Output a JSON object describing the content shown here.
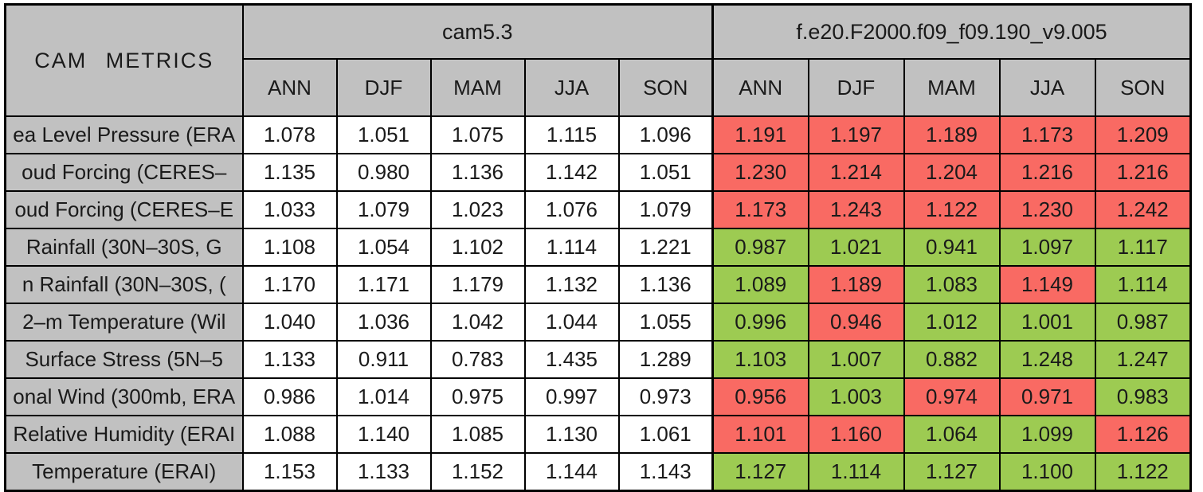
{
  "title": "CAM METRICS",
  "colors": {
    "title_bg": "#6495ed",
    "header_bg": "#c1c1c1",
    "baseline_bg": "#ffffff",
    "better": "#9dcb52",
    "worse": "#f96a63",
    "border": "#000000",
    "text": "#1a1a1a"
  },
  "chart_data": {
    "type": "table",
    "title": "CAM METRICS",
    "column_groups": [
      "cam5.3",
      "f.e20.F2000.f09_f09.190_v9.005"
    ],
    "seasons": [
      "ANN",
      "DJF",
      "MAM",
      "JJA",
      "SON"
    ],
    "legend": {
      "worse_color_meaning": "test case worse (red)",
      "better_color_meaning": "test case better (green)"
    },
    "rows": [
      {
        "label": "ea Level Pressure (ERA",
        "baseline": [
          "1.078",
          "1.051",
          "1.075",
          "1.115",
          "1.096"
        ],
        "test": [
          "1.191",
          "1.197",
          "1.189",
          "1.173",
          "1.209"
        ],
        "test_status": [
          "worse",
          "worse",
          "worse",
          "worse",
          "worse"
        ]
      },
      {
        "label": "oud Forcing (CERES–",
        "baseline": [
          "1.135",
          "0.980",
          "1.136",
          "1.142",
          "1.051"
        ],
        "test": [
          "1.230",
          "1.214",
          "1.204",
          "1.216",
          "1.216"
        ],
        "test_status": [
          "worse",
          "worse",
          "worse",
          "worse",
          "worse"
        ]
      },
      {
        "label": "oud Forcing (CERES–E",
        "baseline": [
          "1.033",
          "1.079",
          "1.023",
          "1.076",
          "1.079"
        ],
        "test": [
          "1.173",
          "1.243",
          "1.122",
          "1.230",
          "1.242"
        ],
        "test_status": [
          "worse",
          "worse",
          "worse",
          "worse",
          "worse"
        ]
      },
      {
        "label": "Rainfall (30N–30S, G",
        "baseline": [
          "1.108",
          "1.054",
          "1.102",
          "1.114",
          "1.221"
        ],
        "test": [
          "0.987",
          "1.021",
          "0.941",
          "1.097",
          "1.117"
        ],
        "test_status": [
          "better",
          "better",
          "better",
          "better",
          "better"
        ]
      },
      {
        "label": "n Rainfall (30N–30S, (",
        "baseline": [
          "1.170",
          "1.171",
          "1.179",
          "1.132",
          "1.136"
        ],
        "test": [
          "1.089",
          "1.189",
          "1.083",
          "1.149",
          "1.114"
        ],
        "test_status": [
          "better",
          "worse",
          "better",
          "worse",
          "better"
        ]
      },
      {
        "label": "2–m Temperature (Wil",
        "baseline": [
          "1.040",
          "1.036",
          "1.042",
          "1.044",
          "1.055"
        ],
        "test": [
          "0.996",
          "0.946",
          "1.012",
          "1.001",
          "0.987"
        ],
        "test_status": [
          "better",
          "worse",
          "better",
          "better",
          "better"
        ]
      },
      {
        "label": "Surface Stress (5N–5",
        "baseline": [
          "1.133",
          "0.911",
          "0.783",
          "1.435",
          "1.289"
        ],
        "test": [
          "1.103",
          "1.007",
          "0.882",
          "1.248",
          "1.247"
        ],
        "test_status": [
          "better",
          "better",
          "better",
          "better",
          "better"
        ]
      },
      {
        "label": "onal Wind (300mb, ERA",
        "baseline": [
          "0.986",
          "1.014",
          "0.975",
          "0.997",
          "0.973"
        ],
        "test": [
          "0.956",
          "1.003",
          "0.974",
          "0.971",
          "0.983"
        ],
        "test_status": [
          "worse",
          "better",
          "worse",
          "worse",
          "better"
        ]
      },
      {
        "label": "Relative Humidity (ERAI",
        "baseline": [
          "1.088",
          "1.140",
          "1.085",
          "1.130",
          "1.061"
        ],
        "test": [
          "1.101",
          "1.160",
          "1.064",
          "1.099",
          "1.126"
        ],
        "test_status": [
          "worse",
          "worse",
          "better",
          "better",
          "worse"
        ]
      },
      {
        "label": "Temperature (ERAI)",
        "baseline": [
          "1.153",
          "1.133",
          "1.152",
          "1.144",
          "1.143"
        ],
        "test": [
          "1.127",
          "1.114",
          "1.127",
          "1.100",
          "1.122"
        ],
        "test_status": [
          "better",
          "better",
          "better",
          "better",
          "better"
        ]
      }
    ]
  }
}
